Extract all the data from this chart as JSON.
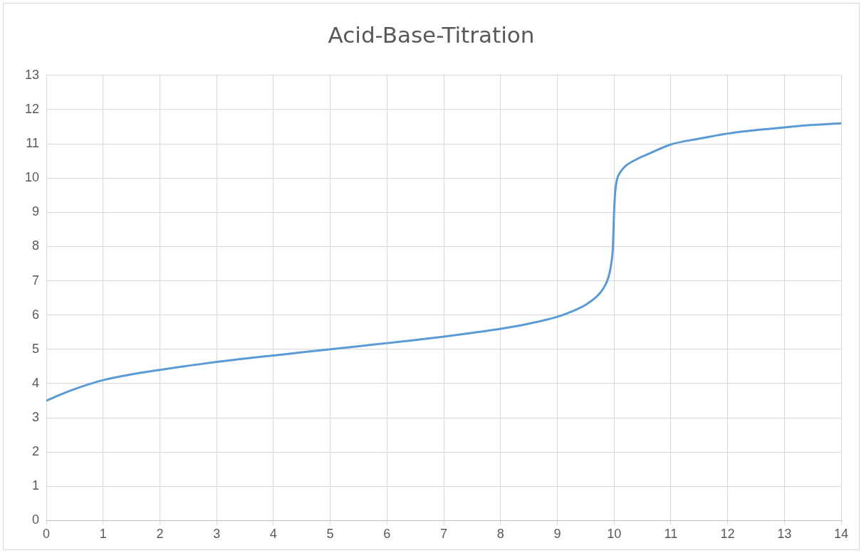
{
  "chart_data": {
    "type": "line",
    "title": "Acid-Base-Titration",
    "x": [
      0,
      0.25,
      0.5,
      0.75,
      1,
      1.5,
      2,
      2.5,
      3,
      3.5,
      4,
      4.5,
      5,
      5.5,
      6,
      6.5,
      7,
      7.5,
      8,
      8.5,
      9,
      9.25,
      9.5,
      9.7,
      9.8,
      9.9,
      9.95,
      9.98,
      10,
      10.02,
      10.05,
      10.1,
      10.2,
      10.4,
      10.6,
      11,
      11.5,
      12,
      12.5,
      13,
      13.5,
      14
    ],
    "series": [
      {
        "color": "#5b9bd5",
        "values": [
          3.5,
          3.68,
          3.84,
          3.98,
          4.1,
          4.27,
          4.4,
          4.52,
          4.63,
          4.73,
          4.82,
          4.91,
          5.0,
          5.09,
          5.18,
          5.27,
          5.37,
          5.48,
          5.6,
          5.75,
          5.95,
          6.1,
          6.3,
          6.55,
          6.75,
          7.1,
          7.5,
          8.0,
          9.0,
          9.6,
          9.95,
          10.15,
          10.35,
          10.55,
          10.7,
          10.98,
          11.15,
          11.3,
          11.4,
          11.48,
          11.55,
          11.6
        ]
      }
    ],
    "xlim": [
      0,
      14
    ],
    "xticks": [
      0,
      1,
      2,
      3,
      4,
      5,
      6,
      7,
      8,
      9,
      10,
      11,
      12,
      13,
      14
    ],
    "ylim": [
      0,
      13
    ],
    "yticks": [
      0,
      1,
      2,
      3,
      4,
      5,
      6,
      7,
      8,
      9,
      10,
      11,
      12,
      13
    ],
    "grid": true,
    "legend": false,
    "marker": "none",
    "line_style": "solid"
  }
}
